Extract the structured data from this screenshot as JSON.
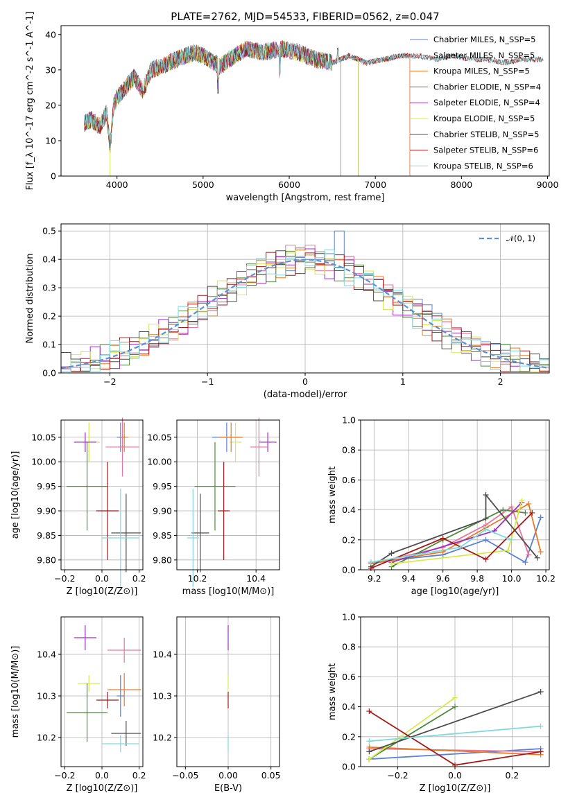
{
  "colors": {
    "chabrier_miles": "#5b7fd6",
    "salpeter_miles": "#e8749a",
    "kroupa_miles": "#e87a24",
    "chabrier_elodie": "#4c8a3c",
    "salpeter_elodie": "#9a2fc0",
    "kroupa_elodie": "#d6ea4c",
    "chabrier_stelib": "#4d4d4d",
    "salpeter_stelib": "#a41818",
    "kroupa_stelib": "#7ed9dc",
    "normal": "#5b8fd9"
  },
  "chart_data": [
    {
      "id": "spectrum",
      "type": "line",
      "title": "PLATE=2762, MJD=54533, FIBERID=0562, z=0.047",
      "xlabel": "wavelength [Angstrom, rest frame]",
      "ylabel": "Flux [f_λ 10^-17 erg cm^-2 s^-1 A^-1]",
      "xlim": [
        3350,
        9020
      ],
      "ylim": [
        0,
        42.5
      ],
      "xticks": [
        4000,
        5000,
        6000,
        7000,
        8000,
        9000
      ],
      "yticks": [
        0,
        10,
        20,
        30,
        40
      ],
      "series": [
        {
          "name": "Chabrier MILES, N_SSP=5",
          "key": "chabrier_miles",
          "xmax": 7400
        },
        {
          "name": "Salpeter MILES, N_SSP=5",
          "key": "salpeter_miles",
          "xmax": 7400
        },
        {
          "name": "Kroupa MILES, N_SSP=5",
          "key": "kroupa_miles",
          "xmax": 7400
        },
        {
          "name": "Chabrier ELODIE, N_SSP=4",
          "key": "chabrier_elodie",
          "xmax": 6800
        },
        {
          "name": "Salpeter ELODIE, N_SSP=4",
          "key": "salpeter_elodie",
          "xmax": 6800
        },
        {
          "name": "Kroupa ELODIE, N_SSP=5",
          "key": "kroupa_elodie",
          "xmax": 6800
        },
        {
          "name": "Chabrier STELIB, N_SSP=5",
          "key": "chabrier_stelib",
          "xmax": 8950
        },
        {
          "name": "Salpeter STELIB, N_SSP=6",
          "key": "salpeter_stelib",
          "xmax": 8950
        },
        {
          "name": "Kroupa STELIB, N_SSP=6",
          "key": "kroupa_stelib",
          "xmax": 8950
        }
      ],
      "profile": [
        [
          3620,
          15
        ],
        [
          3700,
          16
        ],
        [
          3800,
          14
        ],
        [
          3880,
          18
        ],
        [
          3920,
          8
        ],
        [
          3960,
          20
        ],
        [
          4000,
          22
        ],
        [
          4100,
          25
        ],
        [
          4200,
          28
        ],
        [
          4300,
          24
        ],
        [
          4400,
          30
        ],
        [
          4500,
          31
        ],
        [
          4700,
          33
        ],
        [
          4900,
          35
        ],
        [
          5000,
          34
        ],
        [
          5200,
          31
        ],
        [
          5300,
          33
        ],
        [
          5500,
          36
        ],
        [
          5700,
          35
        ],
        [
          5900,
          36
        ],
        [
          6100,
          35
        ],
        [
          6300,
          33
        ],
        [
          6500,
          32
        ],
        [
          6700,
          34
        ],
        [
          6900,
          32
        ],
        [
          7100,
          33
        ],
        [
          7300,
          34
        ],
        [
          7500,
          34
        ],
        [
          7700,
          33
        ],
        [
          7900,
          34
        ],
        [
          8100,
          33
        ],
        [
          8300,
          33
        ],
        [
          8500,
          32
        ],
        [
          8700,
          33
        ],
        [
          8950,
          33
        ]
      ]
    },
    {
      "id": "residuals",
      "type": "bar",
      "xlabel": "(data-model)/error",
      "ylabel": "Normed distribution",
      "xlim": [
        -2.5,
        2.5
      ],
      "ylim": [
        0,
        0.525
      ],
      "xticks": [
        -2,
        -1,
        0,
        1,
        2
      ],
      "yticks": [
        0,
        0.1,
        0.2,
        0.3,
        0.4,
        0.5
      ],
      "bin_width": 0.1,
      "legend": "N(0,1)",
      "histograms": {
        "chabrier_miles": [
          0.02,
          0.02,
          0.03,
          0.03,
          0.04,
          0.05,
          0.06,
          0.07,
          0.08,
          0.09,
          0.1,
          0.12,
          0.14,
          0.16,
          0.19,
          0.22,
          0.25,
          0.28,
          0.31,
          0.34,
          0.36,
          0.37,
          0.41,
          0.36,
          0.44,
          0.4,
          0.4,
          0.42,
          0.5,
          0.41,
          0.35,
          0.33,
          0.33,
          0.31,
          0.28,
          0.26,
          0.26,
          0.24,
          0.21,
          0.18,
          0.16,
          0.14,
          0.12,
          0.11,
          0.1,
          0.08,
          0.06,
          0.05,
          0.04,
          0.02
        ],
        "salpeter_miles": [
          0.02,
          0.02,
          0.03,
          0.03,
          0.04,
          0.05,
          0.06,
          0.07,
          0.08,
          0.09,
          0.1,
          0.12,
          0.14,
          0.16,
          0.19,
          0.22,
          0.25,
          0.28,
          0.31,
          0.34,
          0.36,
          0.37,
          0.39,
          0.45,
          0.41,
          0.45,
          0.36,
          0.36,
          0.4,
          0.41,
          0.35,
          0.33,
          0.33,
          0.31,
          0.28,
          0.26,
          0.24,
          0.22,
          0.2,
          0.18,
          0.16,
          0.14,
          0.12,
          0.1,
          0.08,
          0.07,
          0.06,
          0.05,
          0.04,
          0.03
        ]
      },
      "overlay": [
        "kroupa_miles",
        "chabrier_elodie",
        "salpeter_elodie",
        "kroupa_elodie",
        "chabrier_stelib",
        "salpeter_stelib",
        "kroupa_stelib"
      ]
    },
    {
      "id": "age_vs_z",
      "type": "scatter",
      "xlabel": "Z [log10(Z/Z⊙)]",
      "ylabel": "age  [log10(age/yr)]",
      "xlim": [
        -0.22,
        0.22
      ],
      "ylim": [
        9.78,
        10.085
      ],
      "xticks": [
        -0.2,
        0,
        0.2
      ],
      "yticks": [
        9.8,
        9.85,
        9.9,
        9.95,
        10.0,
        10.05
      ],
      "points": [
        {
          "k": "kroupa_elodie",
          "x": -0.07,
          "y": 10.04,
          "ex": 0.06,
          "ey": 0.04
        },
        {
          "k": "chabrier_elodie",
          "x": -0.08,
          "y": 9.95,
          "ex": 0.11,
          "ey": 0.09
        },
        {
          "k": "salpeter_elodie",
          "x": -0.09,
          "y": 10.04,
          "ex": 0.06,
          "ey": 0.02
        },
        {
          "k": "salpeter_stelib",
          "x": 0.03,
          "y": 9.9,
          "ex": 0.06,
          "ey": 0.1
        },
        {
          "k": "chabrier_miles",
          "x": 0.1,
          "y": 10.05,
          "ex": 0.02,
          "ey": 0.03
        },
        {
          "k": "kroupa_miles",
          "x": 0.12,
          "y": 10.05,
          "ex": 0.02,
          "ey": 0.03
        },
        {
          "k": "salpeter_miles",
          "x": 0.11,
          "y": 10.03,
          "ex": 0.09,
          "ey": 0.06
        },
        {
          "k": "chabrier_stelib",
          "x": 0.13,
          "y": 9.855,
          "ex": 0.08,
          "ey": 0.08
        },
        {
          "k": "kroupa_stelib",
          "x": 0.1,
          "y": 9.845,
          "ex": 0.1,
          "ey": 0.1
        }
      ]
    },
    {
      "id": "age_vs_mass",
      "type": "scatter",
      "xlabel": "mass [log10(M/M⊙)]",
      "ylabel": "",
      "xlim": [
        10.13,
        10.48
      ],
      "ylim": [
        9.78,
        10.085
      ],
      "xticks": [
        10.2,
        10.4
      ],
      "yticks": [
        9.8,
        9.85,
        9.9,
        9.95,
        10.0,
        10.05
      ],
      "points": [
        {
          "k": "kroupa_elodie",
          "x": 10.33,
          "y": 10.04,
          "ex": 0.02,
          "ey": 0.04
        },
        {
          "k": "chabrier_elodie",
          "x": 10.26,
          "y": 9.95,
          "ex": 0.07,
          "ey": 0.09
        },
        {
          "k": "salpeter_elodie",
          "x": 10.44,
          "y": 10.04,
          "ex": 0.03,
          "ey": 0.02
        },
        {
          "k": "salpeter_stelib",
          "x": 10.29,
          "y": 9.9,
          "ex": 0.02,
          "ey": 0.1
        },
        {
          "k": "chabrier_miles",
          "x": 10.3,
          "y": 10.05,
          "ex": 0.05,
          "ey": 0.03
        },
        {
          "k": "kroupa_miles",
          "x": 10.315,
          "y": 10.05,
          "ex": 0.04,
          "ey": 0.03
        },
        {
          "k": "salpeter_miles",
          "x": 10.41,
          "y": 10.03,
          "ex": 0.03,
          "ey": 0.06
        },
        {
          "k": "chabrier_stelib",
          "x": 10.21,
          "y": 9.855,
          "ex": 0.03,
          "ey": 0.08
        },
        {
          "k": "kroupa_stelib",
          "x": 10.185,
          "y": 9.845,
          "ex": 0.02,
          "ey": 0.1
        }
      ]
    },
    {
      "id": "weight_vs_age",
      "type": "line",
      "xlabel": "age  [log10(age/yr)]",
      "ylabel": "mass weight",
      "xlim": [
        9.12,
        10.22
      ],
      "ylim": [
        0,
        1.0
      ],
      "xticks": [
        9.2,
        9.4,
        9.6,
        9.8,
        10.0,
        10.2
      ],
      "yticks": [
        0,
        0.2,
        0.4,
        0.6,
        0.8,
        1.0
      ],
      "series": [
        {
          "k": "chabrier_miles",
          "pts": [
            [
              9.18,
              0.05
            ],
            [
              9.6,
              0.1
            ],
            [
              9.85,
              0.2
            ],
            [
              10.08,
              0.05
            ],
            [
              10.17,
              0.35
            ]
          ]
        },
        {
          "k": "salpeter_miles",
          "pts": [
            [
              9.18,
              0.04
            ],
            [
              9.6,
              0.15
            ],
            [
              9.85,
              0.3
            ],
            [
              10.0,
              0.42
            ],
            [
              10.1,
              0.1
            ]
          ]
        },
        {
          "k": "kroupa_miles",
          "pts": [
            [
              9.18,
              0.04
            ],
            [
              9.6,
              0.12
            ],
            [
              9.85,
              0.28
            ],
            [
              10.1,
              0.44
            ],
            [
              10.17,
              0.12
            ]
          ]
        },
        {
          "k": "chabrier_elodie",
          "pts": [
            [
              9.3,
              0.02
            ],
            [
              9.6,
              0.2
            ],
            [
              9.95,
              0.4
            ],
            [
              10.08,
              0.38
            ]
          ]
        },
        {
          "k": "salpeter_elodie",
          "pts": [
            [
              9.3,
              0.05
            ],
            [
              9.9,
              0.26
            ],
            [
              10.06,
              0.45
            ]
          ]
        },
        {
          "k": "kroupa_elodie",
          "pts": [
            [
              9.3,
              0.04
            ],
            [
              9.98,
              0.13
            ],
            [
              10.06,
              0.46
            ]
          ]
        },
        {
          "k": "chabrier_stelib",
          "pts": [
            [
              9.18,
              0.02
            ],
            [
              9.3,
              0.11
            ],
            [
              9.85,
              0.34
            ],
            [
              9.85,
              0.5
            ],
            [
              10.15,
              0.08
            ]
          ]
        },
        {
          "k": "salpeter_stelib",
          "pts": [
            [
              9.18,
              0.01
            ],
            [
              9.6,
              0.21
            ],
            [
              9.85,
              0.07
            ],
            [
              10.12,
              0.38
            ]
          ]
        },
        {
          "k": "kroupa_stelib",
          "pts": [
            [
              9.18,
              0.05
            ],
            [
              9.7,
              0.15
            ],
            [
              9.85,
              0.27
            ],
            [
              10.0,
              0.2
            ]
          ]
        }
      ]
    },
    {
      "id": "mass_vs_z",
      "type": "scatter",
      "xlabel": "Z [log10(Z/Z⊙)]",
      "ylabel": "mass [log10(M/M⊙)]",
      "xlim": [
        -0.22,
        0.22
      ],
      "ylim": [
        10.13,
        10.49
      ],
      "xticks": [
        -0.2,
        0,
        0.2
      ],
      "yticks": [
        10.2,
        10.3,
        10.4
      ],
      "points": [
        {
          "k": "salpeter_elodie",
          "x": -0.09,
          "y": 10.44,
          "ex": 0.06,
          "ey": 0.03
        },
        {
          "k": "salpeter_miles",
          "x": 0.12,
          "y": 10.41,
          "ex": 0.09,
          "ey": 0.03
        },
        {
          "k": "kroupa_elodie",
          "x": -0.07,
          "y": 10.33,
          "ex": 0.06,
          "ey": 0.02
        },
        {
          "k": "kroupa_miles",
          "x": 0.12,
          "y": 10.315,
          "ex": 0.09,
          "ey": 0.04
        },
        {
          "k": "chabrier_miles",
          "x": 0.1,
          "y": 10.3,
          "ex": 0.02,
          "ey": 0.05
        },
        {
          "k": "salpeter_stelib",
          "x": 0.03,
          "y": 10.29,
          "ex": 0.06,
          "ey": 0.02
        },
        {
          "k": "chabrier_elodie",
          "x": -0.08,
          "y": 10.26,
          "ex": 0.11,
          "ey": 0.07
        },
        {
          "k": "chabrier_stelib",
          "x": 0.13,
          "y": 10.21,
          "ex": 0.08,
          "ey": 0.03
        },
        {
          "k": "kroupa_stelib",
          "x": 0.1,
          "y": 10.185,
          "ex": 0.1,
          "ey": 0.02
        }
      ]
    },
    {
      "id": "mass_vs_ebv",
      "type": "scatter",
      "xlabel": "E(B-V)",
      "ylabel": "",
      "xlim": [
        -0.06,
        0.06
      ],
      "ylim": [
        10.13,
        10.49
      ],
      "xticks": [
        -0.05,
        0,
        0.05
      ],
      "yticks": [
        10.2,
        10.3,
        10.4
      ],
      "points": [
        {
          "k": "salpeter_elodie",
          "x": 0,
          "y": 10.44,
          "ex": 0,
          "ey": 0.03
        },
        {
          "k": "kroupa_elodie",
          "x": 0,
          "y": 10.33,
          "ex": 0,
          "ey": 0.02
        },
        {
          "k": "salpeter_stelib",
          "x": 0,
          "y": 10.29,
          "ex": 0,
          "ey": 0.02
        },
        {
          "k": "kroupa_stelib",
          "x": 0,
          "y": 10.185,
          "ex": 0,
          "ey": 0.02
        }
      ]
    },
    {
      "id": "weight_vs_z",
      "type": "line",
      "xlabel": "Z [log10(Z/Z⊙)]",
      "ylabel": "mass weight",
      "xlim": [
        -0.33,
        0.33
      ],
      "ylim": [
        0,
        1.0
      ],
      "xticks": [
        -0.2,
        0,
        0.2
      ],
      "yticks": [
        0,
        0.2,
        0.4,
        0.6,
        0.8,
        1.0
      ],
      "series": [
        {
          "k": "chabrier_miles",
          "pts": [
            [
              -0.3,
              0.05
            ],
            [
              0.3,
              0.12
            ]
          ]
        },
        {
          "k": "salpeter_miles",
          "pts": [
            [
              -0.3,
              0.12
            ],
            [
              0.3,
              0.1
            ]
          ]
        },
        {
          "k": "kroupa_miles",
          "pts": [
            [
              -0.3,
              0.13
            ],
            [
              0.3,
              0.08
            ]
          ]
        },
        {
          "k": "chabrier_elodie",
          "pts": [
            [
              -0.3,
              0.05
            ],
            [
              0,
              0.4
            ]
          ]
        },
        {
          "k": "kroupa_elodie",
          "pts": [
            [
              -0.3,
              0.05
            ],
            [
              0,
              0.46
            ]
          ]
        },
        {
          "k": "chabrier_stelib",
          "pts": [
            [
              -0.3,
              0.1
            ],
            [
              0.3,
              0.5
            ]
          ]
        },
        {
          "k": "salpeter_stelib",
          "pts": [
            [
              -0.3,
              0.37
            ],
            [
              0,
              0.01
            ],
            [
              0.3,
              0.1
            ]
          ]
        },
        {
          "k": "kroupa_stelib",
          "pts": [
            [
              -0.3,
              0.17
            ],
            [
              0.3,
              0.27
            ]
          ]
        }
      ]
    }
  ]
}
